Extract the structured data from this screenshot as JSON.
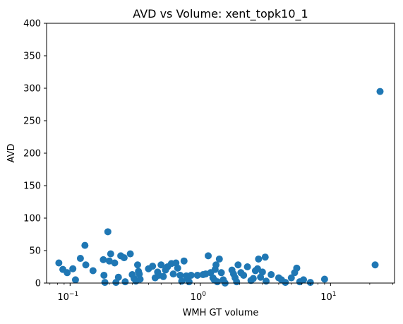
{
  "chart_data": {
    "type": "scatter",
    "title": "AVD vs Volume: xent_topk10_1",
    "xlabel": "WMH GT volume",
    "ylabel": "AVD",
    "xscale": "log",
    "xlim": [
      0.066,
      31
    ],
    "ylim": [
      0,
      400
    ],
    "yticks": [
      0,
      50,
      100,
      150,
      200,
      250,
      300,
      350,
      400
    ],
    "xticks": [
      {
        "value": 0.1,
        "base": "10",
        "exp": "−1"
      },
      {
        "value": 1,
        "base": "10",
        "exp": "0"
      },
      {
        "value": 10,
        "base": "10",
        "exp": "1"
      }
    ],
    "grid": false,
    "marker_color": "#1f77b4",
    "points": [
      [
        0.082,
        31
      ],
      [
        0.088,
        21
      ],
      [
        0.095,
        16
      ],
      [
        0.105,
        22
      ],
      [
        0.11,
        5
      ],
      [
        0.12,
        38
      ],
      [
        0.13,
        58
      ],
      [
        0.132,
        28
      ],
      [
        0.15,
        19
      ],
      [
        0.18,
        36
      ],
      [
        0.182,
        12
      ],
      [
        0.185,
        1
      ],
      [
        0.195,
        79
      ],
      [
        0.2,
        34
      ],
      [
        0.205,
        45
      ],
      [
        0.22,
        31
      ],
      [
        0.225,
        1
      ],
      [
        0.235,
        9
      ],
      [
        0.245,
        42
      ],
      [
        0.26,
        39
      ],
      [
        0.265,
        2
      ],
      [
        0.29,
        45
      ],
      [
        0.3,
        13
      ],
      [
        0.31,
        7
      ],
      [
        0.32,
        3
      ],
      [
        0.33,
        28
      ],
      [
        0.335,
        18
      ],
      [
        0.34,
        14
      ],
      [
        0.345,
        6
      ],
      [
        0.4,
        22
      ],
      [
        0.43,
        26
      ],
      [
        0.45,
        8
      ],
      [
        0.47,
        17
      ],
      [
        0.48,
        12
      ],
      [
        0.5,
        28
      ],
      [
        0.52,
        10
      ],
      [
        0.54,
        20
      ],
      [
        0.56,
        25
      ],
      [
        0.6,
        30
      ],
      [
        0.62,
        14
      ],
      [
        0.65,
        31
      ],
      [
        0.67,
        23
      ],
      [
        0.7,
        12
      ],
      [
        0.72,
        3
      ],
      [
        0.75,
        34
      ],
      [
        0.78,
        11
      ],
      [
        0.8,
        6
      ],
      [
        0.82,
        2
      ],
      [
        0.85,
        12
      ],
      [
        0.95,
        12
      ],
      [
        1.05,
        13
      ],
      [
        1.1,
        14
      ],
      [
        1.15,
        42
      ],
      [
        1.2,
        16
      ],
      [
        1.25,
        8
      ],
      [
        1.28,
        5
      ],
      [
        1.3,
        21
      ],
      [
        1.32,
        28
      ],
      [
        1.35,
        2
      ],
      [
        1.4,
        37
      ],
      [
        1.45,
        16
      ],
      [
        1.5,
        5
      ],
      [
        1.55,
        0
      ],
      [
        1.75,
        20
      ],
      [
        1.8,
        14
      ],
      [
        1.85,
        8
      ],
      [
        1.9,
        2
      ],
      [
        1.95,
        28
      ],
      [
        2.05,
        16
      ],
      [
        2.15,
        12
      ],
      [
        2.3,
        25
      ],
      [
        2.45,
        4
      ],
      [
        2.55,
        7
      ],
      [
        2.65,
        19
      ],
      [
        2.75,
        22
      ],
      [
        2.8,
        37
      ],
      [
        2.9,
        9
      ],
      [
        3.0,
        17
      ],
      [
        3.15,
        40
      ],
      [
        3.2,
        3
      ],
      [
        3.5,
        13
      ],
      [
        4.0,
        8
      ],
      [
        4.2,
        5
      ],
      [
        4.5,
        1
      ],
      [
        5.0,
        8
      ],
      [
        5.3,
        16
      ],
      [
        5.5,
        23
      ],
      [
        5.8,
        2
      ],
      [
        6.2,
        5
      ],
      [
        7.0,
        1
      ],
      [
        9.0,
        6
      ],
      [
        22.0,
        28
      ],
      [
        24.0,
        295
      ]
    ]
  }
}
